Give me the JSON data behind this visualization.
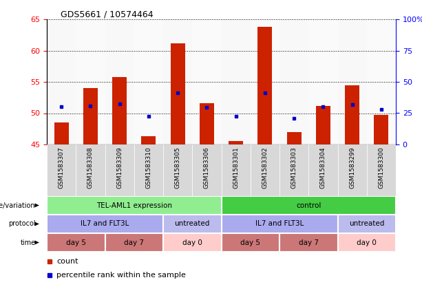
{
  "title": "GDS5661 / 10574464",
  "samples": [
    "GSM1583307",
    "GSM1583308",
    "GSM1583309",
    "GSM1583310",
    "GSM1583305",
    "GSM1583306",
    "GSM1583301",
    "GSM1583302",
    "GSM1583303",
    "GSM1583304",
    "GSM1583299",
    "GSM1583300"
  ],
  "bar_bottoms": [
    45,
    45,
    45,
    45,
    45,
    45,
    45,
    45,
    45,
    45,
    45,
    45
  ],
  "bar_tops": [
    48.5,
    54.0,
    55.8,
    46.3,
    61.1,
    51.6,
    45.6,
    63.8,
    47.0,
    51.2,
    54.5,
    49.7
  ],
  "blue_values": [
    51.0,
    51.2,
    51.5,
    49.5,
    53.2,
    50.9,
    49.5,
    53.2,
    49.2,
    51.0,
    51.4,
    50.6
  ],
  "ylim_left": [
    45,
    65
  ],
  "ylim_right": [
    0,
    100
  ],
  "yticks_left": [
    45,
    50,
    55,
    60,
    65
  ],
  "yticks_right": [
    0,
    25,
    50,
    75,
    100
  ],
  "ytick_labels_right": [
    "0",
    "25",
    "50",
    "75",
    "100%"
  ],
  "bar_color": "#cc2200",
  "blue_color": "#0000cc",
  "annotation_rows": [
    {
      "label": "genotype/variation",
      "segments": [
        {
          "text": "TEL-AML1 expression",
          "start": 0,
          "end": 6,
          "color": "#90ee90"
        },
        {
          "text": "control",
          "start": 6,
          "end": 12,
          "color": "#44cc44"
        }
      ]
    },
    {
      "label": "protocol",
      "segments": [
        {
          "text": "IL7 and FLT3L",
          "start": 0,
          "end": 4,
          "color": "#aaaaee"
        },
        {
          "text": "untreated",
          "start": 4,
          "end": 6,
          "color": "#bbbbee"
        },
        {
          "text": "IL7 and FLT3L",
          "start": 6,
          "end": 10,
          "color": "#aaaaee"
        },
        {
          "text": "untreated",
          "start": 10,
          "end": 12,
          "color": "#bbbbee"
        }
      ]
    },
    {
      "label": "time",
      "segments": [
        {
          "text": "day 5",
          "start": 0,
          "end": 2,
          "color": "#cc7777"
        },
        {
          "text": "day 7",
          "start": 2,
          "end": 4,
          "color": "#cc7777"
        },
        {
          "text": "day 0",
          "start": 4,
          "end": 6,
          "color": "#ffcccc"
        },
        {
          "text": "day 5",
          "start": 6,
          "end": 8,
          "color": "#cc7777"
        },
        {
          "text": "day 7",
          "start": 8,
          "end": 10,
          "color": "#cc7777"
        },
        {
          "text": "day 0",
          "start": 10,
          "end": 12,
          "color": "#ffcccc"
        }
      ]
    }
  ],
  "legend_items": [
    {
      "label": "count",
      "color": "#cc2200"
    },
    {
      "label": "percentile rank within the sample",
      "color": "#0000cc"
    }
  ],
  "fig_width": 6.13,
  "fig_height": 4.23,
  "dpi": 100
}
